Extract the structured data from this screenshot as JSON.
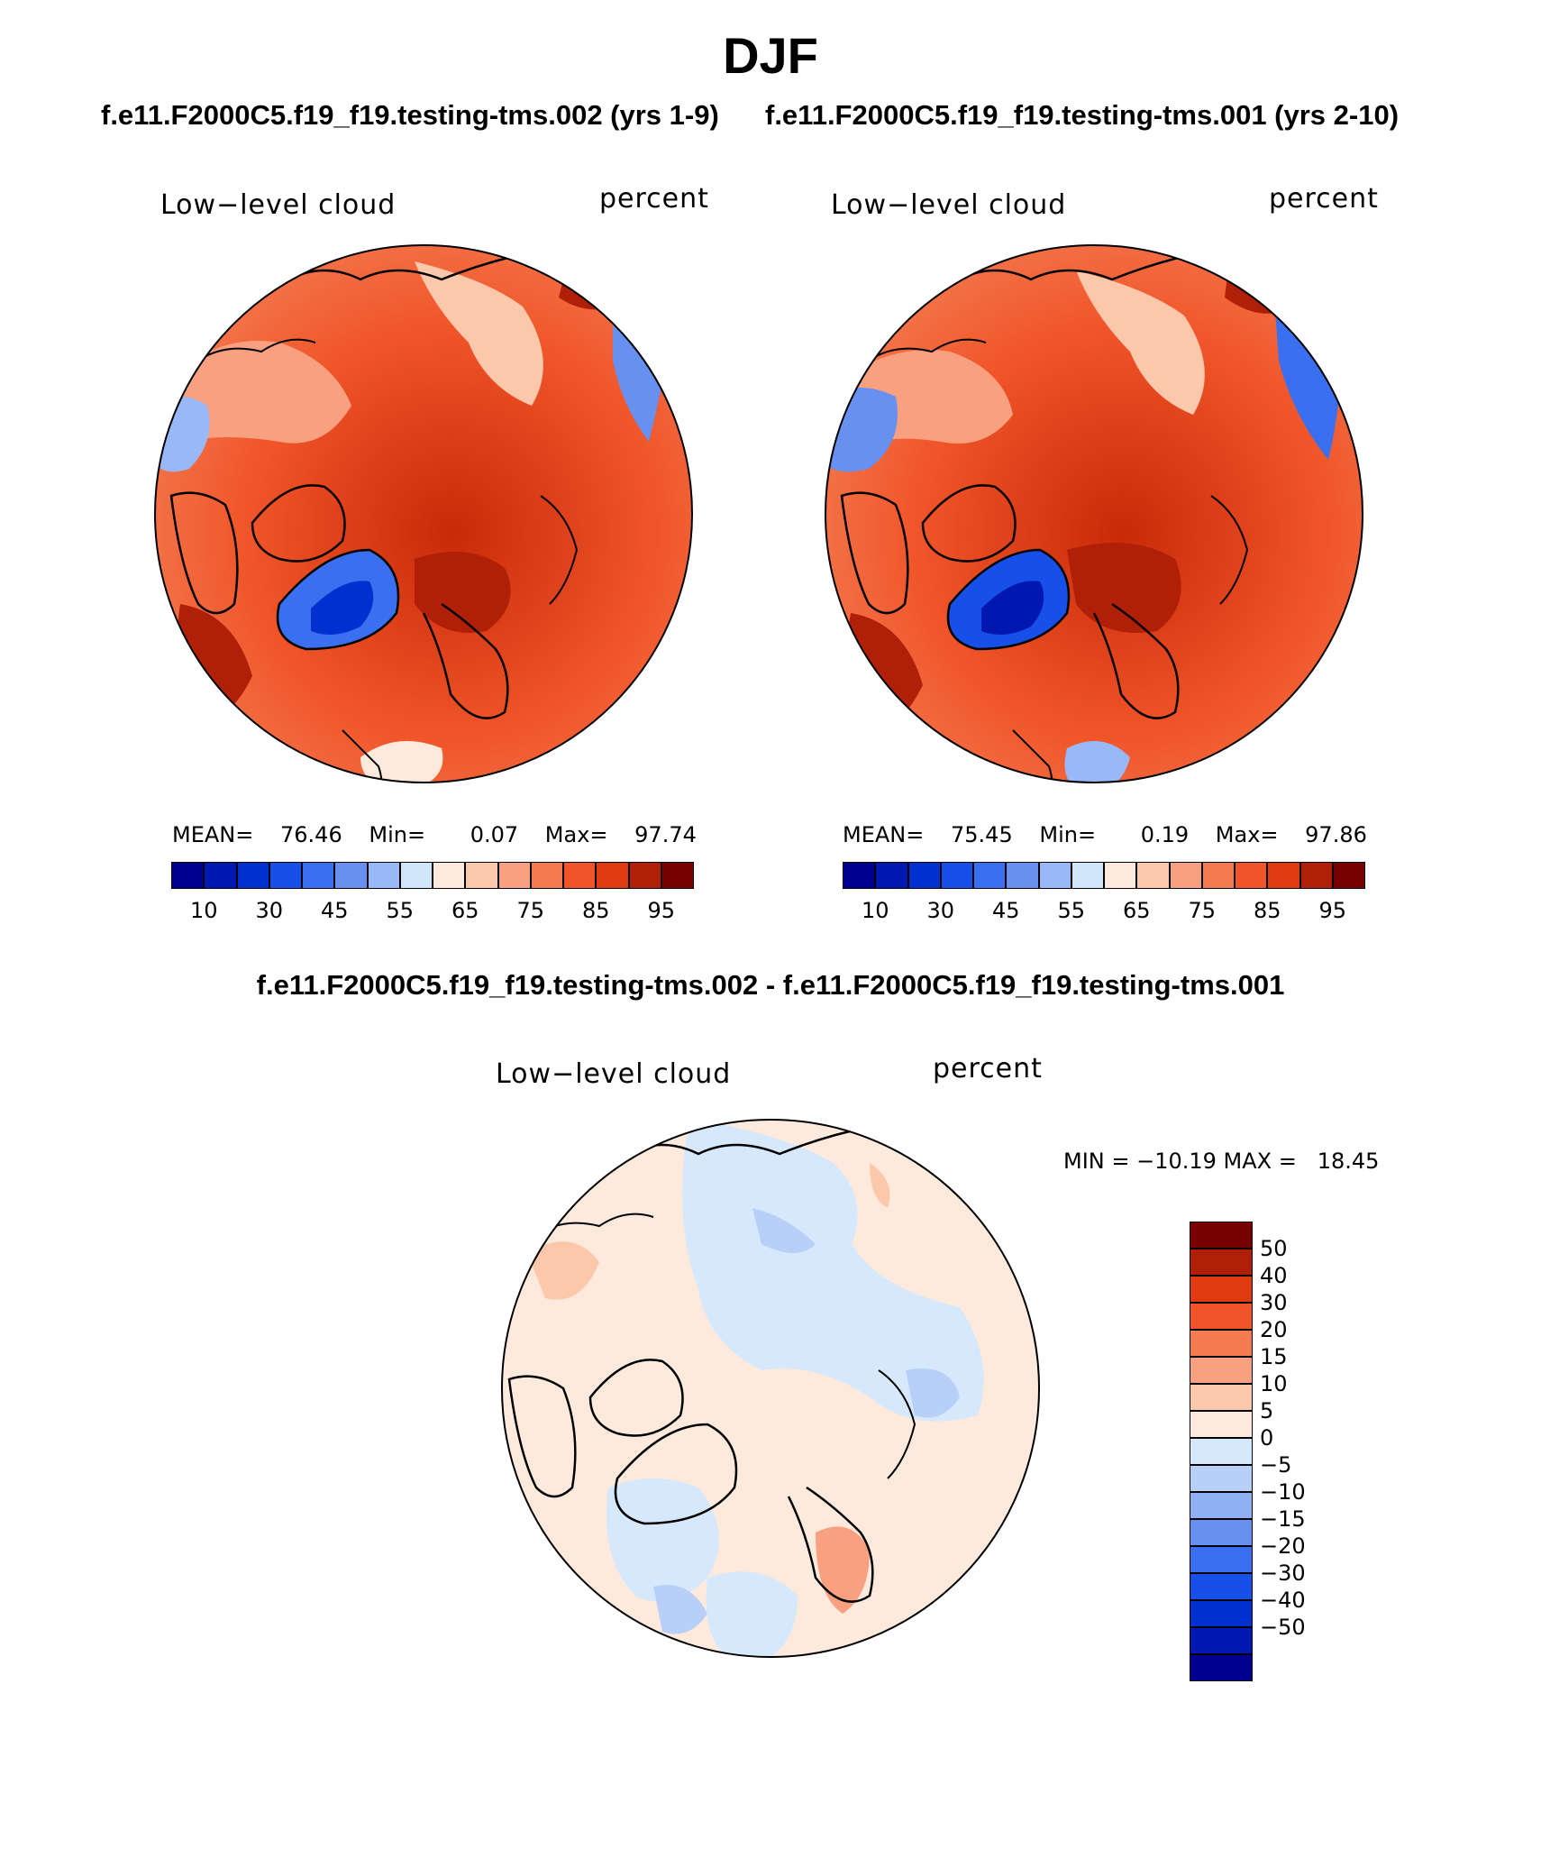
{
  "title": "DJF",
  "panels": [
    {
      "case": "f.e11.F2000C5.f19_f19.testing-tms.002 (yrs 1-9)",
      "field": "Low−level cloud",
      "units": "percent",
      "stats": {
        "mean_label": "MEAN=",
        "mean": "76.46",
        "min_label": "Min=",
        "min": "0.07",
        "max_label": "Max=",
        "max": "97.74"
      }
    },
    {
      "case": "f.e11.F2000C5.f19_f19.testing-tms.001 (yrs 2-10)",
      "field": "Low−level cloud",
      "units": "percent",
      "stats": {
        "mean_label": "MEAN=",
        "mean": "75.45",
        "min_label": "Min=",
        "min": "0.19",
        "max_label": "Max=",
        "max": "97.86"
      }
    }
  ],
  "diff": {
    "title": "f.e11.F2000C5.f19_f19.testing-tms.002 - f.e11.F2000C5.f19_f19.testing-tms.001",
    "field": "Low−level cloud",
    "units": "percent",
    "minmax_text": "MIN = −10.19 MAX =   18.45"
  },
  "colorbar_main": {
    "colors": [
      "#000090",
      "#0018b0",
      "#0030d0",
      "#1650e8",
      "#3a70f0",
      "#6890f0",
      "#98b8f8",
      "#d0e6fa",
      "#fdeadc",
      "#fcc8ac",
      "#f8a080",
      "#f47a50",
      "#f05428",
      "#e03a10",
      "#b02008",
      "#780000"
    ],
    "labels": [
      "10",
      "30",
      "45",
      "55",
      "65",
      "75",
      "85",
      "95"
    ]
  },
  "colorbar_diff": {
    "colors": [
      "#780000",
      "#b02008",
      "#e03a10",
      "#f05428",
      "#f47a50",
      "#f8a080",
      "#fcc8ac",
      "#fdeadc",
      "#d6e8fb",
      "#b8d0f8",
      "#90b0f4",
      "#6890f0",
      "#3a70f0",
      "#1650e8",
      "#0030d0",
      "#0018b0",
      "#000090"
    ],
    "labels": [
      "50",
      "40",
      "30",
      "20",
      "15",
      "10",
      "5",
      "0",
      "−5",
      "−10",
      "−15",
      "−20",
      "−30",
      "−40",
      "−50"
    ]
  },
  "chart_data": [
    {
      "type": "heatmap",
      "title": "Low−level cloud",
      "subtitle": "f.e11.F2000C5.f19_f19.testing-tms.002 (yrs 1-9)",
      "units": "percent",
      "projection": "north polar stereographic",
      "mean": 76.46,
      "min": 0.07,
      "max": 97.74,
      "contour_levels": [
        10,
        20,
        30,
        40,
        45,
        50,
        55,
        60,
        65,
        70,
        75,
        80,
        85,
        90,
        95
      ]
    },
    {
      "type": "heatmap",
      "title": "Low−level cloud",
      "subtitle": "f.e11.F2000C5.f19_f19.testing-tms.001 (yrs 2-10)",
      "units": "percent",
      "projection": "north polar stereographic",
      "mean": 75.45,
      "min": 0.19,
      "max": 97.86,
      "contour_levels": [
        10,
        20,
        30,
        40,
        45,
        50,
        55,
        60,
        65,
        70,
        75,
        80,
        85,
        90,
        95
      ]
    },
    {
      "type": "heatmap",
      "title": "Low−level cloud",
      "subtitle": "f.e11.F2000C5.f19_f19.testing-tms.002 - f.e11.F2000C5.f19_f19.testing-tms.001",
      "units": "percent",
      "projection": "north polar stereographic",
      "min": -10.19,
      "max": 18.45,
      "contour_levels": [
        -50,
        -40,
        -30,
        -20,
        -15,
        -10,
        -5,
        0,
        5,
        10,
        15,
        20,
        30,
        40,
        50
      ]
    }
  ]
}
